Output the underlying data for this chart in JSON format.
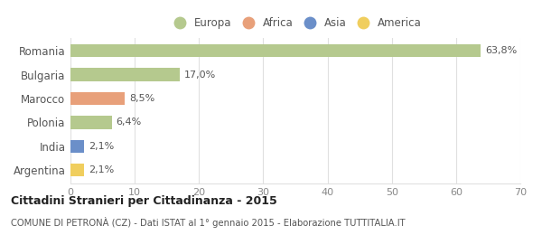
{
  "categories": [
    "Romania",
    "Bulgaria",
    "Marocco",
    "Polonia",
    "India",
    "Argentina"
  ],
  "values": [
    63.8,
    17.0,
    8.5,
    6.4,
    2.1,
    2.1
  ],
  "labels": [
    "63,8%",
    "17,0%",
    "8,5%",
    "6,4%",
    "2,1%",
    "2,1%"
  ],
  "colors": [
    "#b5c98e",
    "#b5c98e",
    "#e8a07a",
    "#b5c98e",
    "#6b8fc9",
    "#f0ce5e"
  ],
  "legend_items": [
    {
      "label": "Europa",
      "color": "#b5c98e"
    },
    {
      "label": "Africa",
      "color": "#e8a07a"
    },
    {
      "label": "Asia",
      "color": "#6b8fc9"
    },
    {
      "label": "America",
      "color": "#f0ce5e"
    }
  ],
  "xlim": [
    0,
    70
  ],
  "xticks": [
    0,
    10,
    20,
    30,
    40,
    50,
    60,
    70
  ],
  "title": "Cittadini Stranieri per Cittadinanza - 2015",
  "subtitle": "COMUNE DI PETRONÀ (CZ) - Dati ISTAT al 1° gennaio 2015 - Elaborazione TUTTITALIA.IT",
  "background_color": "#ffffff",
  "grid_color": "#e0e0e0",
  "bar_height": 0.55,
  "figsize": [
    6.0,
    2.6
  ],
  "dpi": 100
}
